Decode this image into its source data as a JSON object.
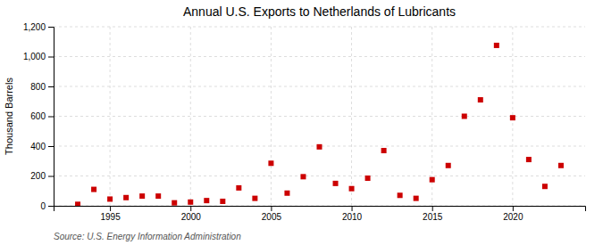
{
  "chart_data": {
    "type": "scatter",
    "title": "Annual U.S. Exports to Netherlands of Lubricants",
    "ylabel": "Thousand Barrels",
    "source": "Source: U.S. Energy Information Administration",
    "x": [
      1993,
      1994,
      1995,
      1996,
      1997,
      1998,
      1999,
      2000,
      2001,
      2002,
      2003,
      2004,
      2005,
      2006,
      2007,
      2008,
      2009,
      2010,
      2011,
      2012,
      2013,
      2014,
      2015,
      2016,
      2017,
      2018,
      2019,
      2020,
      2021,
      2022,
      2023
    ],
    "values": [
      10,
      110,
      45,
      55,
      65,
      65,
      20,
      25,
      35,
      30,
      120,
      50,
      285,
      85,
      195,
      395,
      150,
      115,
      185,
      370,
      70,
      50,
      175,
      270,
      600,
      710,
      1075,
      590,
      310,
      130,
      270
    ],
    "color": "#cc0000",
    "marker": "square",
    "xlim": [
      1991.5,
      2024.5
    ],
    "ylim": [
      0,
      1200
    ],
    "xticks": [
      1995,
      2000,
      2005,
      2010,
      2015,
      2020
    ],
    "yticks": [
      0,
      200,
      400,
      600,
      800,
      {
        "value": 1000,
        "label": "1,000"
      },
      {
        "value": 1200,
        "label": "1,200"
      }
    ],
    "grid": true
  }
}
